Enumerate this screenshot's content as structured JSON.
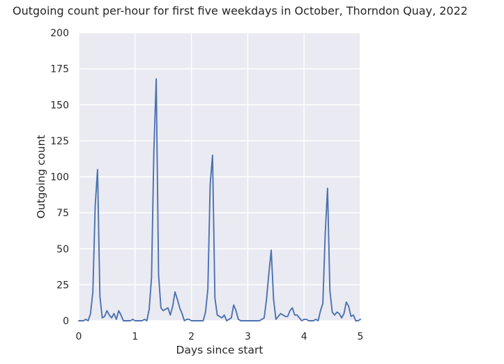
{
  "chart_data": {
    "type": "line",
    "title": "Outgoing count per-hour for first five weekdays in October, Thorndon Quay, 2022",
    "xlabel": "Days since start",
    "ylabel": "Outgoing count",
    "xlim": [
      0,
      5
    ],
    "ylim": [
      0,
      200
    ],
    "xticks": [
      0,
      1,
      2,
      3,
      4,
      5
    ],
    "yticks": [
      0,
      25,
      50,
      75,
      100,
      125,
      150,
      175,
      200
    ],
    "xtick_labels": [
      "0",
      "1",
      "2",
      "3",
      "4",
      "5"
    ],
    "ytick_labels": [
      "0",
      "25",
      "50",
      "75",
      "100",
      "125",
      "150",
      "175",
      "200"
    ],
    "grid": true,
    "background": "#eaeaf2",
    "line_color": "#4c72b0",
    "x_step": 0.04166667,
    "series": [
      {
        "values": [
          0,
          0,
          0,
          1,
          0,
          5,
          20,
          80,
          105,
          17,
          2,
          3,
          7,
          4,
          2,
          5,
          1,
          7,
          4,
          0,
          0,
          0,
          0,
          1,
          0,
          0,
          0,
          0,
          1,
          0,
          8,
          30,
          118,
          168,
          32,
          9,
          7,
          8,
          9,
          4,
          10,
          20,
          15,
          9,
          5,
          0,
          1,
          1,
          0,
          0,
          0,
          0,
          0,
          0,
          6,
          22,
          95,
          115,
          16,
          4,
          3,
          2,
          4,
          0,
          1,
          2,
          11,
          7,
          1,
          0,
          0,
          0,
          0,
          0,
          0,
          0,
          0,
          0,
          1,
          2,
          15,
          33,
          49,
          15,
          1,
          3,
          5,
          4,
          3,
          3,
          7,
          9,
          4,
          4,
          2,
          0,
          1,
          1,
          0,
          0,
          0,
          1,
          0,
          7,
          12,
          60,
          92,
          21,
          6,
          4,
          6,
          5,
          2,
          5,
          13,
          10,
          3,
          4,
          0,
          0,
          1
        ]
      }
    ]
  }
}
